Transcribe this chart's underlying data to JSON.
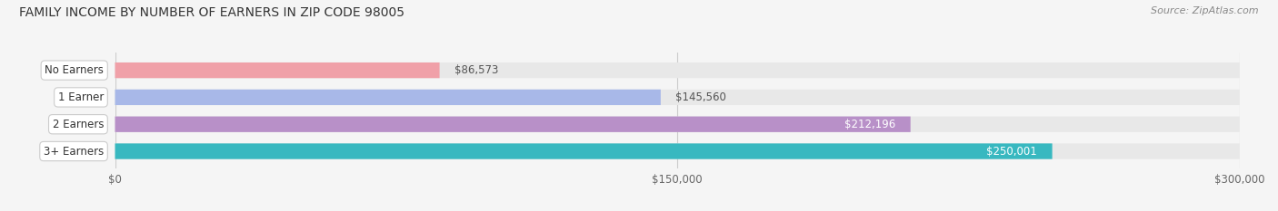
{
  "title": "FAMILY INCOME BY NUMBER OF EARNERS IN ZIP CODE 98005",
  "source": "Source: ZipAtlas.com",
  "categories": [
    "No Earners",
    "1 Earner",
    "2 Earners",
    "3+ Earners"
  ],
  "values": [
    86573,
    145560,
    212196,
    250001
  ],
  "labels": [
    "$86,573",
    "$145,560",
    "$212,196",
    "$250,001"
  ],
  "bar_colors": [
    "#f0a0a8",
    "#a8b8e8",
    "#b890c8",
    "#38b8c0"
  ],
  "label_colors": [
    "#555555",
    "#555555",
    "#ffffff",
    "#ffffff"
  ],
  "bar_bg_color": "#e8e8e8",
  "background_color": "#f5f5f5",
  "xlim": [
    0,
    300000
  ],
  "xticklabels": [
    "$0",
    "$150,000",
    "$300,000"
  ],
  "xtick_values": [
    0,
    150000,
    300000
  ],
  "title_fontsize": 10,
  "source_fontsize": 8,
  "bar_height": 0.58
}
